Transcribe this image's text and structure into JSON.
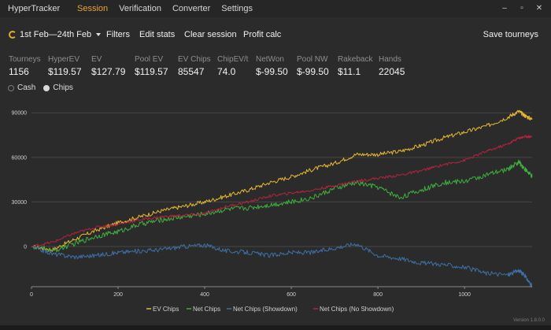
{
  "titlebar": {
    "app_title": "HyperTracker",
    "menu": [
      {
        "label": "Session",
        "active": true
      },
      {
        "label": "Verification",
        "active": false
      },
      {
        "label": "Converter",
        "active": false
      },
      {
        "label": "Settings",
        "active": false
      }
    ],
    "controls": {
      "minimize": "–",
      "restore": "▫",
      "close": "✕"
    }
  },
  "toolbar": {
    "date_range": "1st Feb—24th Feb",
    "filters": "Filters",
    "edit_stats": "Edit stats",
    "clear_session": "Clear session",
    "profit_calc": "Profit calc",
    "save_tourneys": "Save tourneys"
  },
  "stats": [
    {
      "label": "Tourneys",
      "value": "1156"
    },
    {
      "label": "HyperEV",
      "value": "$119.57"
    },
    {
      "label": "EV",
      "value": "$127.79"
    },
    {
      "label": "Pool EV",
      "value": "$119.57"
    },
    {
      "label": "EV Chips",
      "value": "85547"
    },
    {
      "label": "ChipEV/t",
      "value": "74.0"
    },
    {
      "label": "NetWon",
      "value": "$-99.50"
    },
    {
      "label": "Pool NW",
      "value": "$-99.50"
    },
    {
      "label": "Rakeback",
      "value": "$11.1"
    },
    {
      "label": "Hands",
      "value": "22045"
    }
  ],
  "mode_toggle": {
    "cash": "Cash",
    "chips": "Chips",
    "selected": "chips"
  },
  "chart_data": {
    "type": "line",
    "title": "",
    "xlabel": "",
    "ylabel": "",
    "xlim": [
      0,
      1156
    ],
    "ylim": [
      -27000,
      97000
    ],
    "x_ticks": [
      0,
      200,
      400,
      600,
      800,
      1000
    ],
    "y_ticks": [
      0,
      30000,
      60000,
      90000
    ],
    "grid": "horizontal",
    "legend_position": "bottom",
    "colors": {
      "background": "#2b2b2b",
      "grid": "#474747",
      "ev_chips": "#e8b830",
      "net_chips": "#3fae3f",
      "net_showdown": "#3e6fa7",
      "net_no_showdown": "#b8223e"
    },
    "series": [
      {
        "name": "EV Chips",
        "color": "#e8b830",
        "x": [
          0,
          50,
          100,
          150,
          200,
          250,
          300,
          350,
          400,
          450,
          500,
          550,
          600,
          650,
          700,
          750,
          800,
          850,
          900,
          950,
          1000,
          1050,
          1100,
          1125,
          1140,
          1156
        ],
        "y": [
          0,
          -2000,
          5000,
          11000,
          16000,
          20000,
          24000,
          27000,
          30000,
          34000,
          38000,
          43000,
          47000,
          52000,
          56000,
          62000,
          62000,
          64000,
          68000,
          73000,
          77000,
          81000,
          87000,
          91000,
          88000,
          85547
        ]
      },
      {
        "name": "Net Chips",
        "color": "#3fae3f",
        "x": [
          0,
          50,
          100,
          150,
          200,
          250,
          300,
          350,
          400,
          450,
          500,
          550,
          600,
          650,
          700,
          750,
          800,
          850,
          900,
          950,
          1000,
          1050,
          1100,
          1125,
          1140,
          1156
        ],
        "y": [
          0,
          -3000,
          2000,
          7000,
          10000,
          15000,
          18000,
          20000,
          22000,
          25000,
          26000,
          28000,
          30000,
          33000,
          39000,
          43000,
          40000,
          33000,
          38000,
          43000,
          44000,
          48000,
          52000,
          57000,
          52000,
          47000
        ]
      },
      {
        "name": "Net Chips (Showdown)",
        "color": "#3e6fa7",
        "x": [
          0,
          50,
          100,
          150,
          200,
          250,
          300,
          350,
          400,
          450,
          500,
          550,
          600,
          650,
          700,
          750,
          800,
          850,
          900,
          950,
          1000,
          1050,
          1100,
          1125,
          1140,
          1156
        ],
        "y": [
          0,
          -5000,
          -7000,
          -6000,
          -4000,
          -3000,
          -2000,
          0,
          1000,
          -3000,
          -4000,
          -6000,
          -4000,
          -4000,
          -1000,
          2000,
          -6000,
          -8000,
          -11000,
          -12000,
          -14000,
          -18000,
          -19000,
          -16000,
          -20000,
          -27000
        ]
      },
      {
        "name": "Net Chips (No Showdown)",
        "color": "#b8223e",
        "x": [
          0,
          50,
          100,
          150,
          200,
          250,
          300,
          350,
          400,
          450,
          500,
          550,
          600,
          650,
          700,
          750,
          800,
          850,
          900,
          950,
          1000,
          1050,
          1100,
          1125,
          1140,
          1156
        ],
        "y": [
          0,
          3000,
          9000,
          13000,
          15000,
          18000,
          20000,
          21000,
          22000,
          27000,
          30000,
          34000,
          36000,
          38000,
          41000,
          44000,
          46000,
          48000,
          51000,
          55000,
          58000,
          64000,
          69000,
          73000,
          74000,
          74000
        ]
      }
    ]
  },
  "footer": {
    "version": "Version 1.8.0.0"
  }
}
